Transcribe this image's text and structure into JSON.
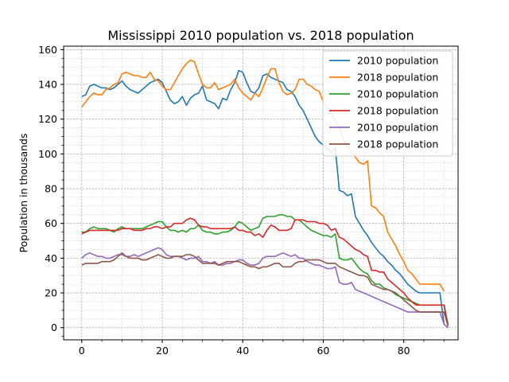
{
  "chart_data": {
    "type": "line",
    "title": "Mississippi 2010 population vs. 2018 population",
    "xlabel": "",
    "ylabel": "Population in thousands",
    "xlim": [
      -4.5,
      93.5
    ],
    "ylim": [
      -7,
      162
    ],
    "xticks": [
      0,
      20,
      40,
      60,
      80
    ],
    "yticks": [
      0,
      20,
      40,
      60,
      80,
      100,
      120,
      140,
      160
    ],
    "grid": true,
    "grid_minor": true,
    "legend_position": "top-right",
    "series": [
      {
        "name": "2010 population",
        "color": "#1f77b4",
        "x": [
          0,
          1,
          2,
          3,
          4,
          5,
          6,
          7,
          8,
          9,
          10,
          11,
          12,
          13,
          14,
          15,
          16,
          17,
          18,
          19,
          20,
          21,
          22,
          23,
          24,
          25,
          26,
          27,
          28,
          29,
          30,
          31,
          32,
          33,
          34,
          35,
          36,
          37,
          38,
          39,
          40,
          41,
          42,
          43,
          44,
          45,
          46,
          47,
          48,
          49,
          50,
          51,
          52,
          53,
          54,
          55,
          56,
          57,
          58,
          59,
          60,
          61,
          62,
          63,
          64,
          65,
          66,
          67,
          68,
          69,
          70,
          71,
          72,
          73,
          74,
          75,
          76,
          77,
          78,
          79,
          80,
          81,
          82,
          83,
          84,
          85,
          86,
          87,
          88,
          89,
          90,
          91
        ],
        "y": [
          133,
          134,
          139,
          140,
          139,
          138,
          138,
          137,
          138,
          140,
          142,
          139,
          137,
          136,
          135,
          137,
          139,
          141,
          142,
          143,
          141,
          136,
          131,
          129,
          130,
          133,
          128,
          132,
          134,
          135,
          139,
          131,
          130,
          129,
          126,
          132,
          131,
          137,
          141,
          148,
          147,
          141,
          136,
          135,
          138,
          145,
          146,
          144,
          143,
          142,
          141,
          137,
          136,
          133,
          128,
          125,
          120,
          115,
          110,
          107,
          105,
          103,
          101,
          103,
          79,
          78,
          76,
          77,
          64,
          60,
          56,
          53,
          49,
          46,
          43,
          41,
          38,
          36,
          33,
          31,
          28,
          25,
          23,
          21,
          20,
          20,
          20,
          20,
          20,
          20,
          2,
          0
        ]
      },
      {
        "name": "2018 population",
        "color": "#ff7f0e",
        "x": [
          0,
          1,
          2,
          3,
          4,
          5,
          6,
          7,
          8,
          9,
          10,
          11,
          12,
          13,
          14,
          15,
          16,
          17,
          18,
          19,
          20,
          21,
          22,
          23,
          24,
          25,
          26,
          27,
          28,
          29,
          30,
          31,
          32,
          33,
          34,
          35,
          36,
          37,
          38,
          39,
          40,
          41,
          42,
          43,
          44,
          45,
          46,
          47,
          48,
          49,
          50,
          51,
          52,
          53,
          54,
          55,
          56,
          57,
          58,
          59,
          60,
          61,
          62,
          63,
          64,
          65,
          66,
          67,
          68,
          69,
          70,
          71,
          72,
          73,
          74,
          75,
          76,
          77,
          78,
          79,
          80,
          81,
          82,
          83,
          84,
          85,
          86,
          87,
          88,
          89,
          90
        ],
        "y": [
          127,
          130,
          133,
          135,
          134,
          134,
          137,
          138,
          140,
          141,
          146,
          147,
          146,
          145,
          145,
          144,
          144,
          147,
          143,
          142,
          139,
          137,
          137,
          141,
          145,
          149,
          152,
          154,
          153,
          146,
          140,
          138,
          138,
          141,
          137,
          138,
          139,
          140,
          143,
          138,
          135,
          133,
          131,
          135,
          133,
          138,
          144,
          149,
          149,
          141,
          136,
          134,
          135,
          137,
          143,
          143,
          140,
          139,
          137,
          136,
          130,
          127,
          123,
          119,
          115,
          108,
          104,
          101,
          98,
          95,
          94,
          96,
          70,
          69,
          66,
          64,
          55,
          51,
          47,
          42,
          38,
          33,
          31,
          28,
          25,
          25,
          25,
          25,
          25,
          25,
          21
        ]
      },
      {
        "name": "2010 population",
        "color": "#2ca02c",
        "x": [
          0,
          1,
          2,
          3,
          4,
          5,
          6,
          7,
          8,
          9,
          10,
          11,
          12,
          13,
          14,
          15,
          16,
          17,
          18,
          19,
          20,
          21,
          22,
          23,
          24,
          25,
          26,
          27,
          28,
          29,
          30,
          31,
          32,
          33,
          34,
          35,
          36,
          37,
          38,
          39,
          40,
          41,
          42,
          43,
          44,
          45,
          46,
          47,
          48,
          49,
          50,
          51,
          52,
          53,
          54,
          55,
          56,
          57,
          58,
          59,
          60,
          61,
          62,
          63,
          64,
          65,
          66,
          67,
          68,
          69,
          70,
          71,
          72,
          73,
          74,
          75,
          76,
          77,
          78,
          79,
          80,
          81,
          82,
          83,
          84,
          85,
          86,
          87,
          88,
          89,
          90,
          91
        ],
        "y": [
          55,
          55,
          57,
          58,
          57,
          57,
          57,
          56,
          55,
          57,
          58,
          57,
          57,
          57,
          57,
          57,
          58,
          59,
          60,
          61,
          61,
          58,
          56,
          56,
          55,
          56,
          55,
          57,
          57,
          59,
          56,
          55,
          55,
          54,
          54,
          55,
          55,
          56,
          58,
          61,
          60,
          58,
          56,
          57,
          58,
          63,
          64,
          64,
          64,
          65,
          65,
          64,
          64,
          62,
          62,
          60,
          58,
          56,
          55,
          54,
          53,
          53,
          52,
          54,
          40,
          39,
          39,
          40,
          37,
          34,
          32,
          31,
          27,
          25,
          25,
          23,
          22,
          21,
          19,
          18,
          17,
          16,
          15,
          14,
          13,
          13,
          13,
          13,
          13,
          13,
          13,
          2
        ]
      },
      {
        "name": "2018 population",
        "color": "#d62728",
        "x": [
          0,
          1,
          2,
          3,
          4,
          5,
          6,
          7,
          8,
          9,
          10,
          11,
          12,
          13,
          14,
          15,
          16,
          17,
          18,
          19,
          20,
          21,
          22,
          23,
          24,
          25,
          26,
          27,
          28,
          29,
          30,
          31,
          32,
          33,
          34,
          35,
          36,
          37,
          38,
          39,
          40,
          41,
          42,
          43,
          44,
          45,
          46,
          47,
          48,
          49,
          50,
          51,
          52,
          53,
          54,
          55,
          56,
          57,
          58,
          59,
          60,
          61,
          62,
          63,
          64,
          65,
          66,
          67,
          68,
          69,
          70,
          71,
          72,
          73,
          74,
          75,
          76,
          77,
          78,
          79,
          80,
          81,
          82,
          83,
          84,
          85,
          86,
          87,
          88,
          89,
          90,
          91
        ],
        "y": [
          54,
          55,
          56,
          56,
          56,
          56,
          56,
          56,
          56,
          56,
          57,
          57,
          57,
          56,
          56,
          56,
          57,
          57,
          58,
          58,
          57,
          58,
          58,
          60,
          60,
          60,
          62,
          63,
          62,
          59,
          58,
          58,
          57,
          57,
          57,
          57,
          57,
          57,
          58,
          56,
          56,
          55,
          55,
          53,
          54,
          52,
          56,
          59,
          58,
          56,
          56,
          56,
          57,
          62,
          62,
          62,
          61,
          61,
          61,
          60,
          60,
          59,
          56,
          57,
          52,
          51,
          49,
          47,
          45,
          44,
          42,
          41,
          33,
          33,
          32,
          32,
          28,
          26,
          24,
          22,
          20,
          17,
          15,
          13,
          13,
          13,
          13,
          13,
          13,
          13,
          13,
          1
        ]
      },
      {
        "name": "2010 population",
        "color": "#9467bd",
        "x": [
          0,
          1,
          2,
          3,
          4,
          5,
          6,
          7,
          8,
          9,
          10,
          11,
          12,
          13,
          14,
          15,
          16,
          17,
          18,
          19,
          20,
          21,
          22,
          23,
          24,
          25,
          26,
          27,
          28,
          29,
          30,
          31,
          32,
          33,
          34,
          35,
          36,
          37,
          38,
          39,
          40,
          41,
          42,
          43,
          44,
          45,
          46,
          47,
          48,
          49,
          50,
          51,
          52,
          53,
          54,
          55,
          56,
          57,
          58,
          59,
          60,
          61,
          62,
          63,
          64,
          65,
          66,
          67,
          68,
          69,
          70,
          71,
          72,
          73,
          74,
          75,
          76,
          77,
          78,
          79,
          80,
          81,
          82,
          83,
          84,
          85,
          86,
          87,
          88,
          89,
          90,
          91
        ],
        "y": [
          40,
          42,
          43,
          42,
          41,
          41,
          40,
          40,
          41,
          42,
          42,
          41,
          41,
          42,
          41,
          42,
          43,
          44,
          45,
          46,
          45,
          42,
          41,
          41,
          41,
          40,
          39,
          40,
          40,
          41,
          38,
          38,
          37,
          38,
          36,
          36,
          37,
          37,
          38,
          39,
          39,
          37,
          36,
          36,
          37,
          40,
          41,
          41,
          41,
          42,
          43,
          42,
          41,
          42,
          40,
          40,
          38,
          37,
          36,
          36,
          35,
          34,
          34,
          35,
          26,
          25,
          25,
          26,
          22,
          21,
          20,
          19,
          18,
          17,
          16,
          15,
          14,
          13,
          12,
          11,
          10,
          9,
          9,
          9,
          9,
          9,
          9,
          9,
          9,
          9,
          2,
          0
        ]
      },
      {
        "name": "2018 population",
        "color": "#8c564b",
        "x": [
          0,
          1,
          2,
          3,
          4,
          5,
          6,
          7,
          8,
          9,
          10,
          11,
          12,
          13,
          14,
          15,
          16,
          17,
          18,
          19,
          20,
          21,
          22,
          23,
          24,
          25,
          26,
          27,
          28,
          29,
          30,
          31,
          32,
          33,
          34,
          35,
          36,
          37,
          38,
          39,
          40,
          41,
          42,
          43,
          44,
          45,
          46,
          47,
          48,
          49,
          50,
          51,
          52,
          53,
          54,
          55,
          56,
          57,
          58,
          59,
          60,
          61,
          62,
          63,
          64,
          65,
          66,
          67,
          68,
          69,
          70,
          71,
          72,
          73,
          74,
          75,
          76,
          77,
          78,
          79,
          80,
          81,
          82,
          83,
          84,
          85,
          86,
          87,
          88,
          89,
          90,
          91
        ],
        "y": [
          36,
          37,
          37,
          37,
          37,
          38,
          38,
          38,
          39,
          41,
          43,
          41,
          40,
          40,
          40,
          39,
          39,
          40,
          41,
          42,
          41,
          40,
          40,
          41,
          41,
          41,
          42,
          42,
          41,
          39,
          37,
          37,
          37,
          37,
          36,
          37,
          38,
          38,
          38,
          38,
          37,
          36,
          35,
          35,
          34,
          35,
          35,
          36,
          37,
          37,
          35,
          35,
          35,
          37,
          38,
          38,
          39,
          39,
          39,
          39,
          38,
          37,
          37,
          37,
          35,
          34,
          33,
          32,
          31,
          30,
          30,
          29,
          25,
          24,
          23,
          22,
          22,
          21,
          20,
          18,
          16,
          14,
          12,
          10,
          9,
          9,
          9,
          9,
          9,
          9,
          9,
          1
        ]
      }
    ]
  }
}
